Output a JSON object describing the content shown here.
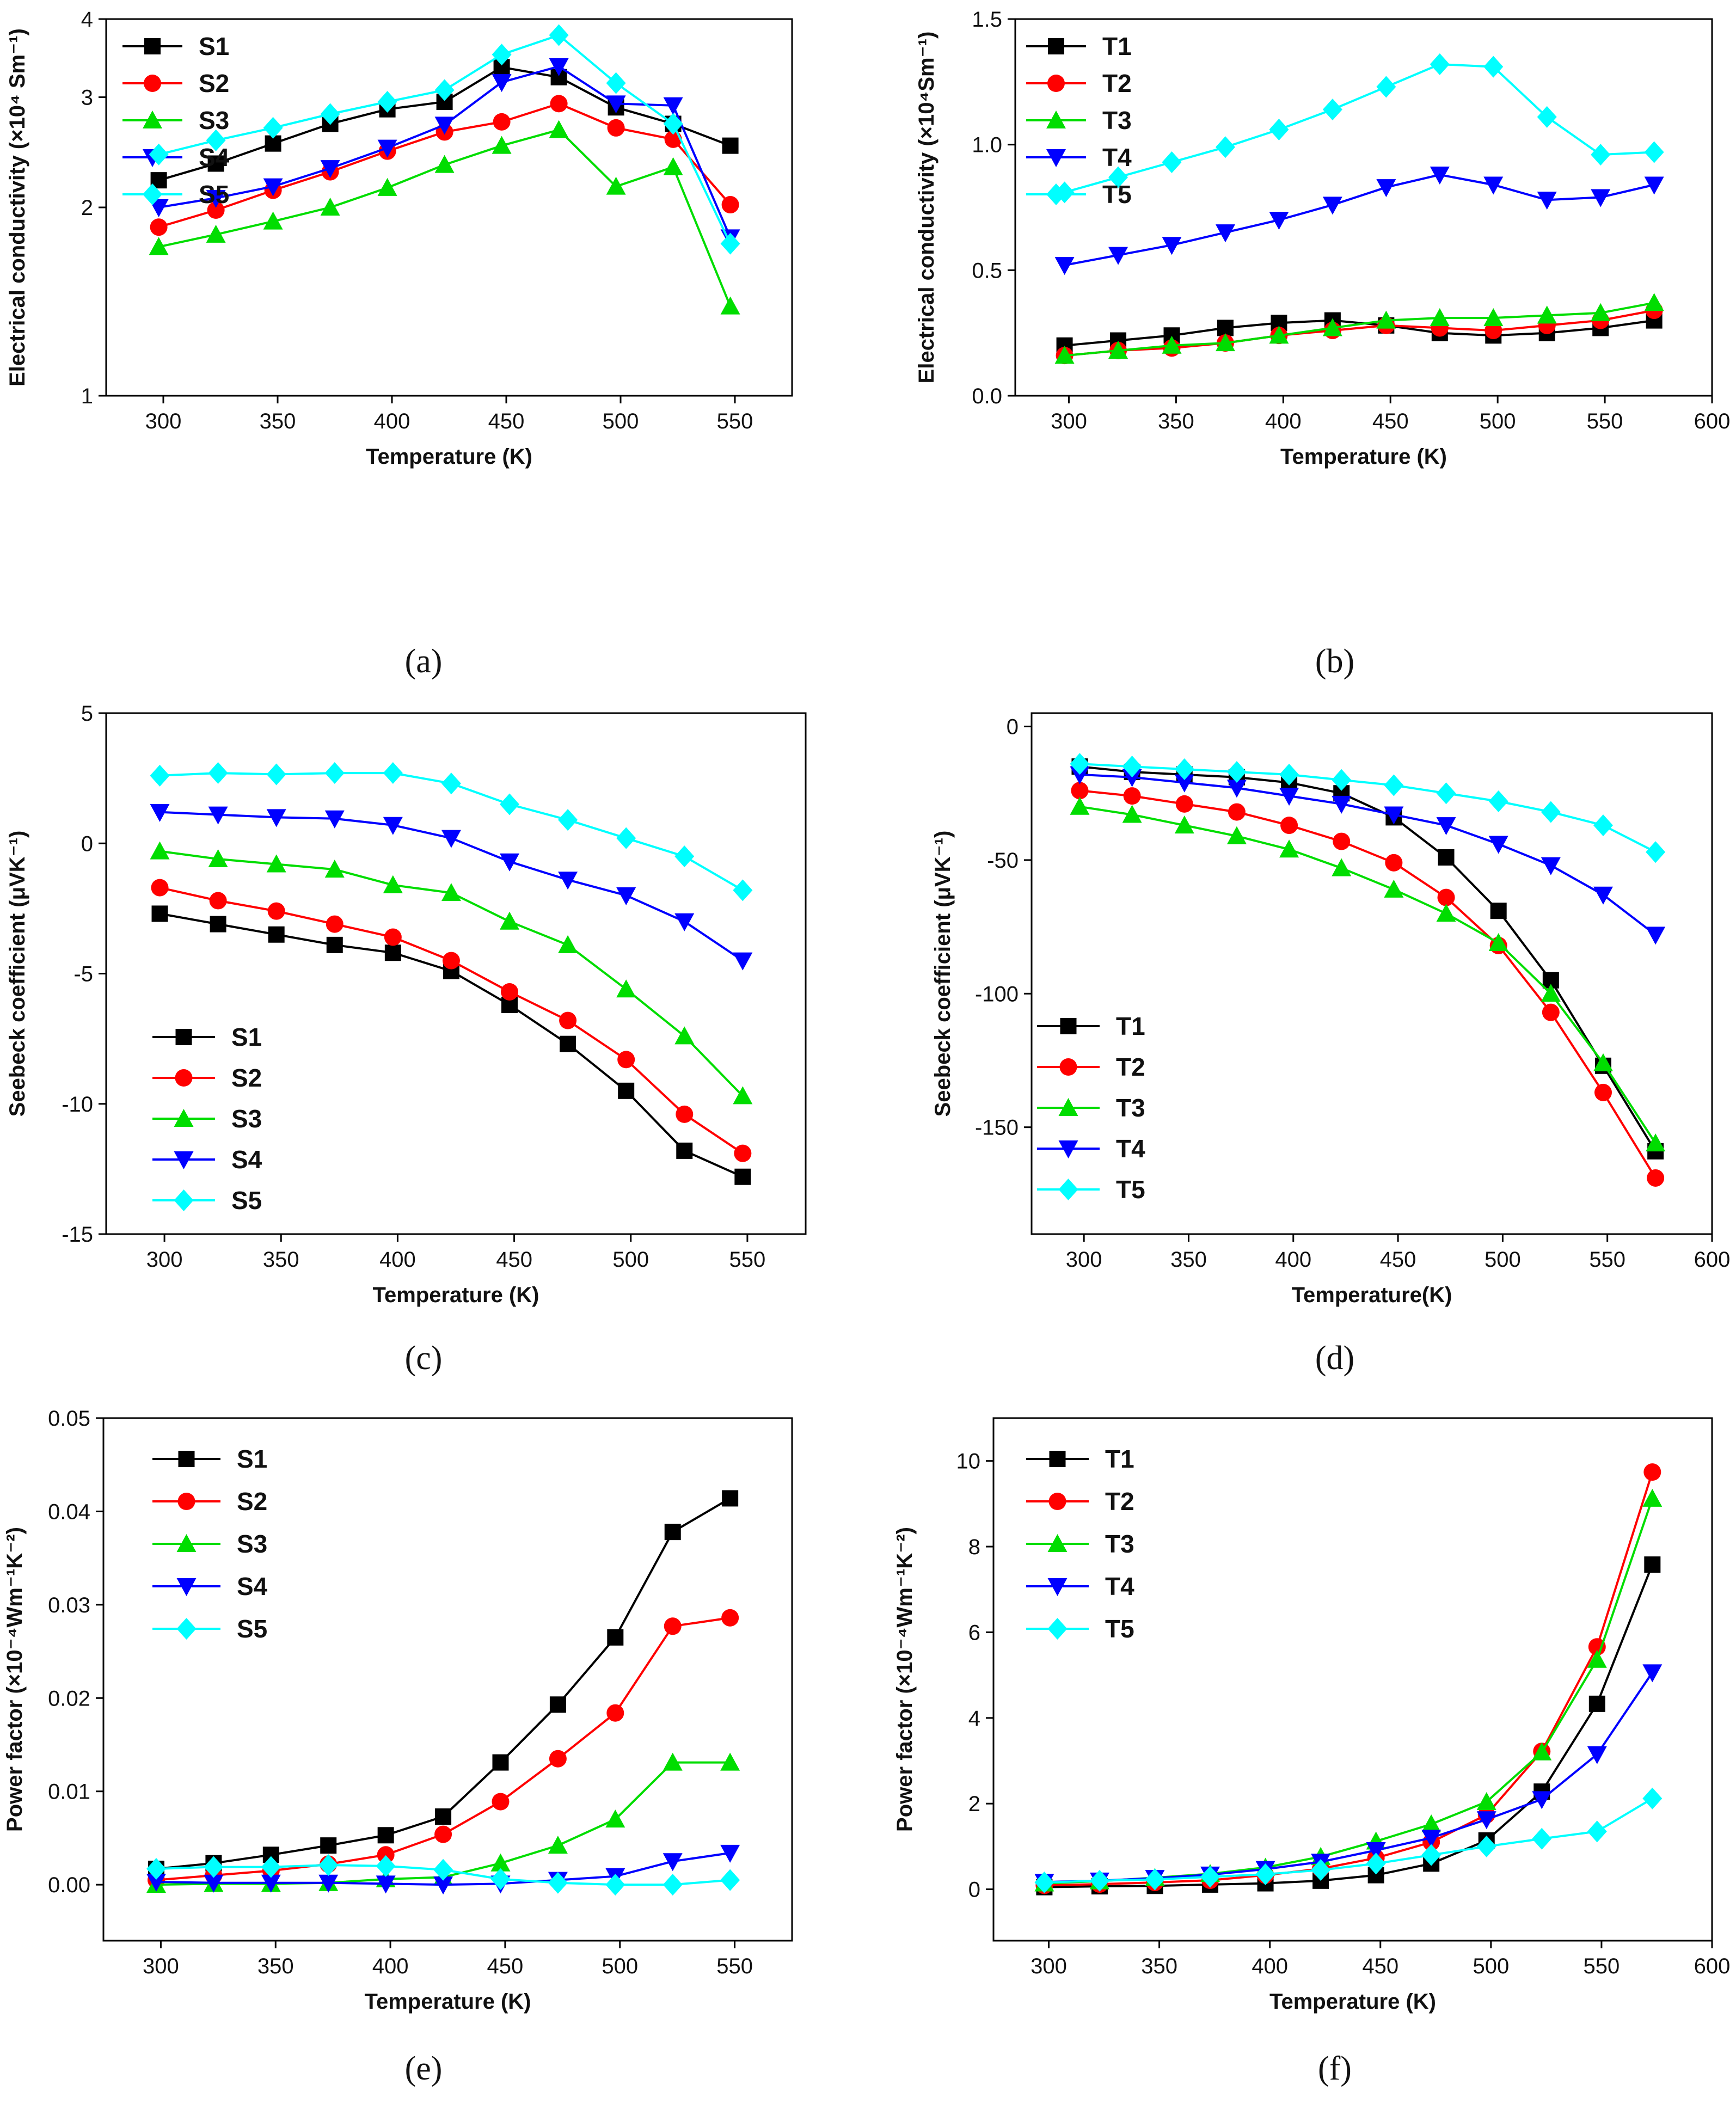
{
  "chart_data": [
    {
      "type": "line",
      "panel_label": "(a)",
      "xlabel": "Temperature (K)",
      "ylabel": "Electrical conductivity (×10⁴ Sm⁻¹)",
      "xlim": [
        275,
        575
      ],
      "ylim": [
        1,
        4
      ],
      "yscale": "log",
      "xticks": [
        300,
        350,
        400,
        450,
        500,
        550
      ],
      "xtick_labels": [
        "300",
        "350",
        "400",
        "450",
        "500",
        "550"
      ],
      "yticks": [
        1,
        2,
        3,
        4
      ],
      "ytick_labels": [
        "1",
        "2",
        "3",
        "4"
      ],
      "legend_position": "top-left",
      "x": [
        298,
        323,
        348,
        373,
        398,
        423,
        448,
        473,
        498,
        523,
        548
      ],
      "series": [
        {
          "name": "S1",
          "color": "#000000",
          "marker": "square",
          "values": [
            2.21,
            2.35,
            2.53,
            2.72,
            2.87,
            2.95,
            3.35,
            3.23,
            2.89,
            2.72,
            2.51
          ]
        },
        {
          "name": "S2",
          "color": "#ff0000",
          "marker": "circle",
          "values": [
            1.86,
            1.98,
            2.13,
            2.28,
            2.46,
            2.64,
            2.74,
            2.93,
            2.68,
            2.57,
            2.02
          ]
        },
        {
          "name": "S3",
          "color": "#00dd00",
          "marker": "triangle-up",
          "values": [
            1.73,
            1.81,
            1.9,
            2.0,
            2.15,
            2.34,
            2.51,
            2.66,
            2.16,
            2.32,
            1.39
          ]
        },
        {
          "name": "S4",
          "color": "#0000ff",
          "marker": "triangle-down",
          "values": [
            2.0,
            2.07,
            2.16,
            2.31,
            2.49,
            2.71,
            3.17,
            3.36,
            2.93,
            2.91,
            1.79
          ]
        },
        {
          "name": "S5",
          "color": "#00ffff",
          "marker": "diamond",
          "values": [
            2.43,
            2.56,
            2.68,
            2.82,
            2.95,
            3.08,
            3.51,
            3.77,
            3.16,
            2.72,
            1.75
          ]
        }
      ]
    },
    {
      "type": "line",
      "panel_label": "(b)",
      "xlabel": "Temperature (K)",
      "ylabel": "Electrical conductivity (×10⁴Sm⁻¹)",
      "xlim": [
        275,
        600
      ],
      "ylim": [
        0,
        1.5
      ],
      "xticks": [
        300,
        350,
        400,
        450,
        500,
        550,
        600
      ],
      "xtick_labels": [
        "300",
        "350",
        "400",
        "450",
        "500",
        "550",
        "600"
      ],
      "yticks": [
        0,
        0.5,
        1.0,
        1.5
      ],
      "ytick_labels": [
        "0.0",
        "0.5",
        "1.0",
        "1.5"
      ],
      "legend_position": "top-left",
      "x": [
        298,
        323,
        348,
        373,
        398,
        423,
        448,
        473,
        498,
        523,
        548,
        573
      ],
      "series": [
        {
          "name": "T1",
          "color": "#000000",
          "marker": "square",
          "values": [
            0.2,
            0.22,
            0.24,
            0.27,
            0.29,
            0.3,
            0.28,
            0.25,
            0.24,
            0.25,
            0.27,
            0.3
          ]
        },
        {
          "name": "T2",
          "color": "#ff0000",
          "marker": "circle",
          "values": [
            0.16,
            0.18,
            0.19,
            0.21,
            0.24,
            0.26,
            0.28,
            0.27,
            0.26,
            0.28,
            0.3,
            0.34
          ]
        },
        {
          "name": "T3",
          "color": "#00dd00",
          "marker": "triangle-up",
          "values": [
            0.16,
            0.18,
            0.2,
            0.21,
            0.24,
            0.27,
            0.3,
            0.31,
            0.31,
            0.32,
            0.33,
            0.37
          ]
        },
        {
          "name": "T4",
          "color": "#0000ff",
          "marker": "triangle-down",
          "values": [
            0.52,
            0.56,
            0.6,
            0.65,
            0.7,
            0.76,
            0.83,
            0.88,
            0.84,
            0.78,
            0.79,
            0.84
          ]
        },
        {
          "name": "T5",
          "color": "#00ffff",
          "marker": "diamond",
          "values": [
            0.81,
            0.87,
            0.93,
            0.99,
            1.06,
            1.14,
            1.23,
            1.32,
            1.31,
            1.11,
            0.96,
            0.97
          ]
        }
      ]
    },
    {
      "type": "line",
      "panel_label": "(c)",
      "xlabel": "Temperature (K)",
      "ylabel": "Seebeck coefficient (μVK⁻¹)",
      "xlim": [
        275,
        575
      ],
      "ylim": [
        -15,
        5
      ],
      "xticks": [
        300,
        350,
        400,
        450,
        500,
        550
      ],
      "xtick_labels": [
        "300",
        "350",
        "400",
        "450",
        "500",
        "550"
      ],
      "yticks": [
        -15,
        -10,
        -5,
        0,
        5
      ],
      "ytick_labels": [
        "-15",
        "-10",
        "-5",
        "0",
        "5"
      ],
      "legend_position": "bottom-left",
      "x": [
        298,
        323,
        348,
        373,
        398,
        423,
        448,
        473,
        498,
        523,
        548
      ],
      "series": [
        {
          "name": "S1",
          "color": "#000000",
          "marker": "square",
          "values": [
            -2.7,
            -3.1,
            -3.5,
            -3.9,
            -4.2,
            -4.9,
            -6.2,
            -7.7,
            -9.5,
            -11.8,
            -12.8
          ]
        },
        {
          "name": "S2",
          "color": "#ff0000",
          "marker": "circle",
          "values": [
            -1.7,
            -2.2,
            -2.6,
            -3.1,
            -3.6,
            -4.5,
            -5.7,
            -6.8,
            -8.3,
            -10.4,
            -11.9
          ]
        },
        {
          "name": "S3",
          "color": "#00dd00",
          "marker": "triangle-up",
          "values": [
            -0.3,
            -0.6,
            -0.8,
            -1.0,
            -1.6,
            -1.9,
            -3.0,
            -3.9,
            -5.6,
            -7.4,
            -9.7
          ]
        },
        {
          "name": "S4",
          "color": "#0000ff",
          "marker": "triangle-down",
          "values": [
            1.2,
            1.1,
            1.0,
            0.95,
            0.7,
            0.2,
            -0.7,
            -1.4,
            -2.0,
            -3.0,
            -4.5
          ]
        },
        {
          "name": "S5",
          "color": "#00ffff",
          "marker": "diamond",
          "values": [
            2.6,
            2.7,
            2.65,
            2.7,
            2.7,
            2.3,
            1.5,
            0.9,
            0.2,
            -0.5,
            -1.8
          ]
        }
      ]
    },
    {
      "type": "line",
      "panel_label": "(d)",
      "xlabel": "Temperature(K)",
      "ylabel": "Seebeck coefficient (μVK⁻¹)",
      "xlim": [
        275,
        600
      ],
      "ylim": [
        -190,
        5
      ],
      "xticks": [
        300,
        350,
        400,
        450,
        500,
        550,
        600
      ],
      "xtick_labels": [
        "300",
        "350",
        "400",
        "450",
        "500",
        "550",
        "600"
      ],
      "yticks": [
        -150,
        -100,
        -50,
        0
      ],
      "ytick_labels": [
        "-150",
        "-100",
        "-50",
        "0"
      ],
      "legend_position": "bottom-left",
      "x": [
        298,
        323,
        348,
        373,
        398,
        423,
        448,
        473,
        498,
        523,
        548,
        573
      ],
      "series": [
        {
          "name": "T1",
          "color": "#000000",
          "marker": "square",
          "values": [
            -15,
            -17,
            -18,
            -19,
            -21,
            -25,
            -34,
            -49,
            -69,
            -95,
            -127,
            -159
          ]
        },
        {
          "name": "T2",
          "color": "#ff0000",
          "marker": "circle",
          "values": [
            -24,
            -26,
            -29,
            -32,
            -37,
            -43,
            -51,
            -64,
            -82,
            -107,
            -137,
            -169
          ]
        },
        {
          "name": "T3",
          "color": "#00dd00",
          "marker": "triangle-up",
          "values": [
            -30,
            -33,
            -37,
            -41,
            -46,
            -53,
            -61,
            -70,
            -81,
            -100,
            -126,
            -156
          ]
        },
        {
          "name": "T4",
          "color": "#0000ff",
          "marker": "triangle-down",
          "values": [
            -18,
            -19,
            -21,
            -23,
            -26,
            -29,
            -33,
            -37,
            -44,
            -52,
            -63,
            -78
          ]
        },
        {
          "name": "T5",
          "color": "#00ffff",
          "marker": "diamond",
          "values": [
            -14,
            -15,
            -16,
            -17,
            -18,
            -20,
            -22,
            -25,
            -28,
            -32,
            -37,
            -47
          ]
        }
      ]
    },
    {
      "type": "line",
      "panel_label": "(e)",
      "xlabel": "Temperature (K)",
      "ylabel": "Power factor (×10⁻⁴Wm⁻¹K⁻²)",
      "xlim": [
        275,
        575
      ],
      "ylim": [
        -0.006,
        0.05
      ],
      "xticks": [
        300,
        350,
        400,
        450,
        500,
        550
      ],
      "xtick_labels": [
        "300",
        "350",
        "400",
        "450",
        "500",
        "550"
      ],
      "yticks": [
        0.0,
        0.01,
        0.02,
        0.03,
        0.04,
        0.05
      ],
      "ytick_labels": [
        "0.00",
        "0.01",
        "0.02",
        "0.03",
        "0.04",
        "0.05"
      ],
      "legend_position": "top-left",
      "x": [
        298,
        323,
        348,
        373,
        398,
        423,
        448,
        473,
        498,
        523,
        548
      ],
      "series": [
        {
          "name": "S1",
          "color": "#000000",
          "marker": "square",
          "values": [
            0.0017,
            0.0023,
            0.0032,
            0.0042,
            0.0053,
            0.0073,
            0.0131,
            0.0193,
            0.0265,
            0.0378,
            0.0414
          ]
        },
        {
          "name": "S2",
          "color": "#ff0000",
          "marker": "circle",
          "values": [
            0.0005,
            0.001,
            0.0015,
            0.0022,
            0.0032,
            0.0054,
            0.0089,
            0.0135,
            0.0184,
            0.0277,
            0.0286
          ]
        },
        {
          "name": "S3",
          "color": "#00dd00",
          "marker": "triangle-up",
          "values": [
            0.0,
            0.0001,
            0.0001,
            0.0002,
            0.0006,
            0.0008,
            0.0023,
            0.0042,
            0.007,
            0.0131,
            0.0131
          ]
        },
        {
          "name": "S4",
          "color": "#0000ff",
          "marker": "triangle-down",
          "values": [
            0.0003,
            0.0002,
            0.0002,
            0.0002,
            0.0001,
            0.0,
            0.0001,
            0.0005,
            0.0009,
            0.0025,
            0.0034
          ]
        },
        {
          "name": "S5",
          "color": "#00ffff",
          "marker": "diamond",
          "values": [
            0.0017,
            0.0019,
            0.0019,
            0.0021,
            0.002,
            0.0016,
            0.0006,
            0.0002,
            0.0,
            0.0,
            0.0005
          ]
        }
      ]
    },
    {
      "type": "line",
      "panel_label": "(f)",
      "xlabel": "Temperature (K)",
      "ylabel": "Power factor (×10⁻⁴Wm⁻¹K⁻²)",
      "xlim": [
        275,
        600
      ],
      "ylim": [
        -1.2,
        11
      ],
      "xticks": [
        300,
        350,
        400,
        450,
        500,
        550,
        600
      ],
      "xtick_labels": [
        "300",
        "350",
        "400",
        "450",
        "500",
        "550",
        "600"
      ],
      "yticks": [
        0,
        2,
        4,
        6,
        8,
        10
      ],
      "ytick_labels": [
        "0",
        "2",
        "4",
        "6",
        "8",
        "10"
      ],
      "legend_position": "top-left",
      "x": [
        298,
        323,
        348,
        373,
        398,
        423,
        448,
        473,
        498,
        523,
        548,
        573
      ],
      "series": [
        {
          "name": "T1",
          "color": "#000000",
          "marker": "square",
          "values": [
            0.05,
            0.07,
            0.08,
            0.11,
            0.14,
            0.2,
            0.33,
            0.6,
            1.14,
            2.28,
            4.33,
            7.58
          ]
        },
        {
          "name": "T2",
          "color": "#ff0000",
          "marker": "circle",
          "values": [
            0.09,
            0.12,
            0.16,
            0.21,
            0.33,
            0.48,
            0.73,
            1.1,
            1.74,
            3.22,
            5.66,
            9.74
          ]
        },
        {
          "name": "T3",
          "color": "#00dd00",
          "marker": "triangle-up",
          "values": [
            0.14,
            0.19,
            0.27,
            0.36,
            0.51,
            0.76,
            1.12,
            1.52,
            2.04,
            3.2,
            5.36,
            9.12
          ]
        },
        {
          "name": "T4",
          "color": "#0000ff",
          "marker": "triangle-down",
          "values": [
            0.17,
            0.2,
            0.26,
            0.34,
            0.47,
            0.64,
            0.91,
            1.2,
            1.63,
            2.1,
            3.15,
            5.06
          ]
        },
        {
          "name": "T5",
          "color": "#00ffff",
          "marker": "diamond",
          "values": [
            0.16,
            0.2,
            0.23,
            0.29,
            0.35,
            0.45,
            0.6,
            0.8,
            1.0,
            1.18,
            1.35,
            2.12
          ]
        }
      ]
    }
  ]
}
